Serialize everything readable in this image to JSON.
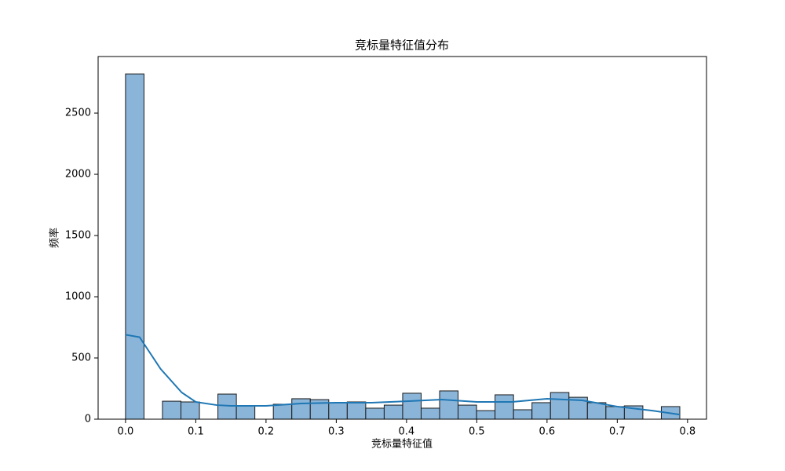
{
  "chart_data": {
    "type": "histogram",
    "title": "竞标量特征值分布",
    "x_label": "竞标量特征值",
    "y_label": "频率",
    "bins": [
      0,
      0.0263,
      0.0526,
      0.0789,
      0.1052,
      0.1315,
      0.1578,
      0.1841,
      0.2104,
      0.2367,
      0.263,
      0.2893,
      0.3156,
      0.3419,
      0.3682,
      0.3945,
      0.4208,
      0.4471,
      0.4734,
      0.4997,
      0.526,
      0.5523,
      0.5786,
      0.6049,
      0.6312,
      0.6575,
      0.6838,
      0.7101,
      0.7364,
      0.7627,
      0.789
    ],
    "counts": [
      2820,
      0,
      147,
      141,
      0,
      205,
      109,
      0,
      122,
      167,
      160,
      135,
      141,
      90,
      115,
      212,
      90,
      231,
      115,
      70,
      199,
      77,
      135,
      218,
      179,
      135,
      103,
      109,
      0,
      103
    ],
    "color": "#8ab5d9",
    "edge_color": "#1a1a1a",
    "kde": {
      "color": "#1f77b4",
      "x": [
        0,
        0.02,
        0.05,
        0.08,
        0.1,
        0.13,
        0.15,
        0.2,
        0.25,
        0.3,
        0.35,
        0.4,
        0.45,
        0.5,
        0.55,
        0.6,
        0.65,
        0.7,
        0.75,
        0.789
      ],
      "values": [
        690,
        670,
        410,
        218,
        141,
        115,
        109,
        109,
        128,
        135,
        135,
        147,
        160,
        141,
        141,
        167,
        154,
        103,
        70,
        38
      ]
    },
    "xlim": [
      -0.039,
      0.827
    ],
    "ylim": [
      0,
      2962
    ],
    "xticks": [
      {
        "value": 0,
        "label": "0.0"
      },
      0.1,
      0.2,
      0.3,
      0.4,
      0.5,
      0.6,
      0.7,
      0.8
    ],
    "yticks": [
      0,
      500,
      1000,
      1500,
      2000,
      2500
    ]
  }
}
